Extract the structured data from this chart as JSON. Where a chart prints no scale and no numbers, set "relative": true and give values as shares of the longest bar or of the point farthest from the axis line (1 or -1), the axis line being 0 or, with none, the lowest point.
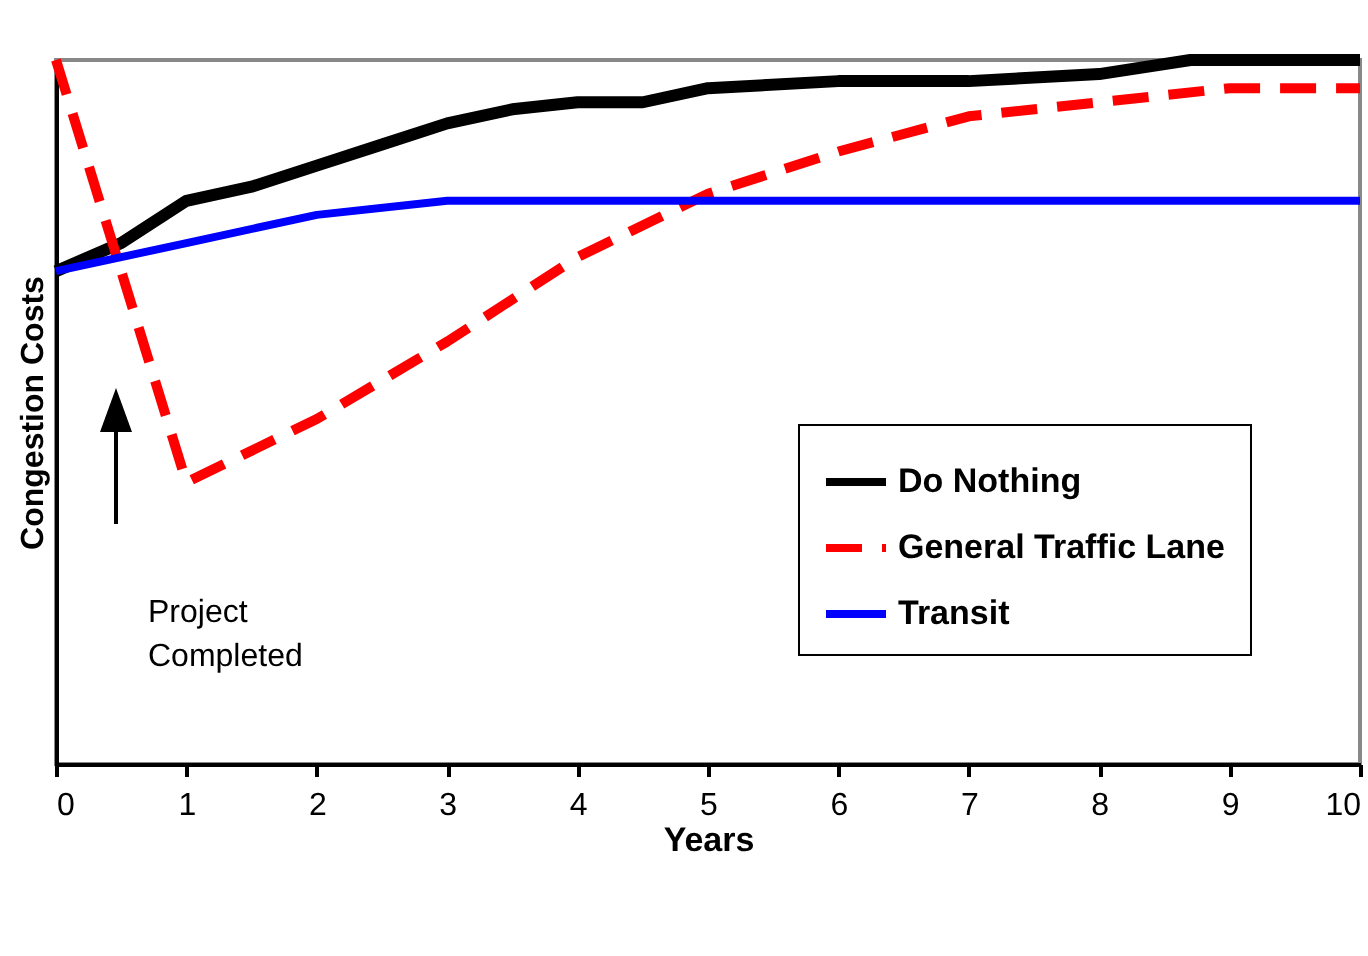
{
  "chart_data": {
    "type": "line",
    "relative": true,
    "xlabel": "Years",
    "ylabel": "Congestion Costs",
    "xlim": [
      0,
      10
    ],
    "xticks": [
      0,
      1,
      2,
      3,
      4,
      5,
      6,
      7,
      8,
      9,
      10
    ],
    "legend": "bottom right",
    "grid": false,
    "marker": "none",
    "annotations": [
      "Project Completed"
    ],
    "series": [
      {
        "name": "Do Nothing",
        "color": "#000000",
        "line_style": "solid",
        "x": [
          0,
          0.5,
          1,
          1.5,
          2,
          2.5,
          3,
          3.5,
          4,
          4.5,
          5,
          6,
          7,
          8,
          8.7,
          10
        ],
        "values": [
          0.7,
          0.74,
          0.8,
          0.82,
          0.85,
          0.88,
          0.91,
          0.93,
          0.94,
          0.94,
          0.96,
          0.97,
          0.97,
          0.98,
          1.0,
          1.0
        ]
      },
      {
        "name": "General Traffic Lane",
        "color": "#ff0000",
        "line_style": "dashed",
        "x": [
          0,
          1,
          2,
          3,
          4,
          5,
          6,
          7,
          8,
          9,
          10
        ],
        "values": [
          1.0,
          0.4,
          0.49,
          0.6,
          0.72,
          0.81,
          0.87,
          0.92,
          0.94,
          0.96,
          0.96
        ]
      },
      {
        "name": "Transit",
        "color": "#0000ff",
        "line_style": "solid",
        "x": [
          0,
          1,
          2,
          3,
          10
        ],
        "values": [
          0.7,
          0.74,
          0.78,
          0.8,
          0.8
        ]
      }
    ]
  }
}
